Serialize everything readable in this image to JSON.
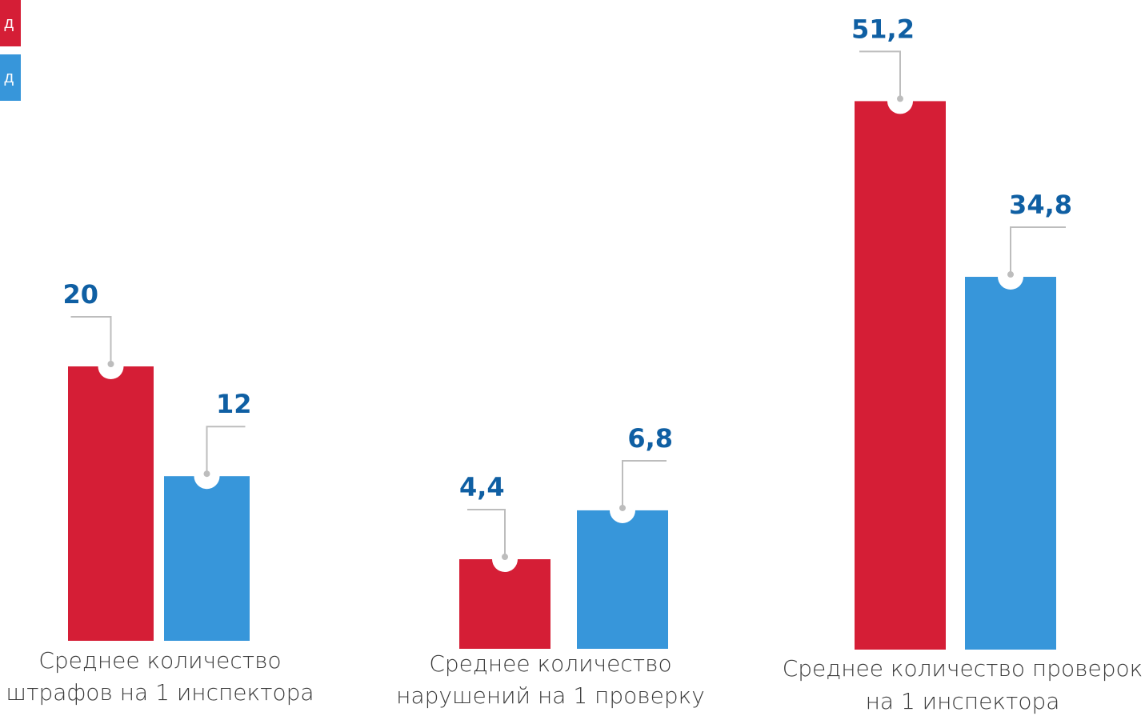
{
  "chart_data": {
    "type": "bar",
    "legend": {
      "placement": "top-left",
      "entries": [
        {
          "text": "д",
          "color": "#d51e36"
        },
        {
          "text": "д",
          "color": "#3796da"
        }
      ]
    },
    "series": [
      {
        "color": "#d51e36",
        "values": [
          20,
          4.4,
          51.2
        ],
        "labels": [
          "20",
          "4,4",
          "51,2"
        ]
      },
      {
        "color": "#3796da",
        "values": [
          12,
          6.8,
          34.8
        ],
        "labels": [
          "12",
          "6,8",
          "34,8"
        ]
      }
    ],
    "categories": [
      [
        "Среднее количество",
        "штрафов на 1 инспектора"
      ],
      [
        "Среднее количество",
        "нарушений на 1 проверку"
      ],
      [
        "Среднее количество проверок",
        "на 1 инспектора"
      ]
    ],
    "label_color": "#0f5fa3",
    "leader_color": "#bdbdbd"
  }
}
